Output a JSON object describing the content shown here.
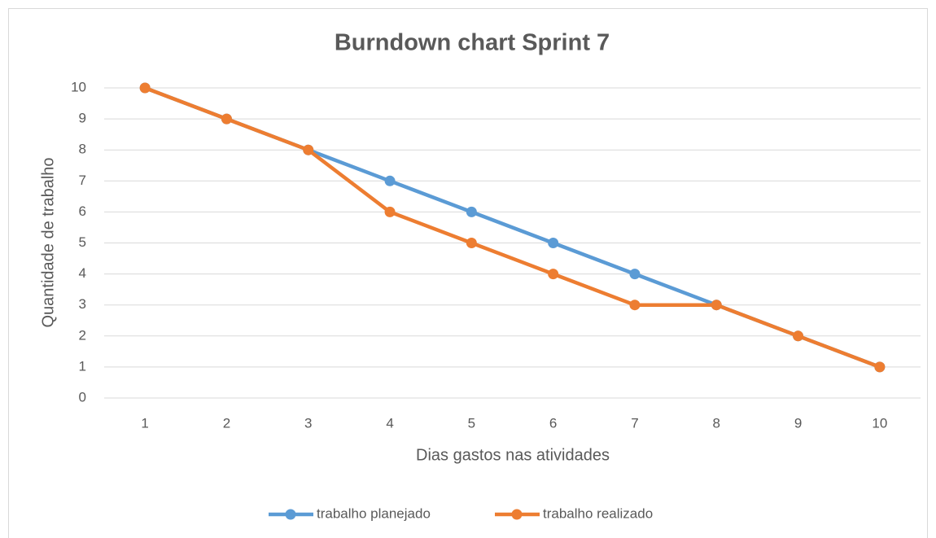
{
  "chart_data": {
    "type": "line",
    "title": "Burndown chart Sprint 7",
    "x_label": "Dias gastos nas atividades",
    "y_label": "Quantidade de trabalho",
    "categories": [
      "1",
      "2",
      "3",
      "4",
      "5",
      "6",
      "7",
      "8",
      "9",
      "10"
    ],
    "series": [
      {
        "name": "trabalho planejado",
        "color": "#5b9bd5",
        "values": [
          10,
          9,
          8,
          7,
          6,
          5,
          4,
          3,
          2,
          1
        ]
      },
      {
        "name": "trabalho realizado",
        "color": "#ed7d31",
        "values": [
          10,
          9,
          8,
          6,
          5,
          4,
          3,
          3,
          2,
          1
        ]
      }
    ],
    "ylim": [
      0,
      10
    ],
    "yticks": [
      0,
      1,
      2,
      3,
      4,
      5,
      6,
      7,
      8,
      9,
      10
    ],
    "grid": true,
    "legend": "bottom"
  }
}
